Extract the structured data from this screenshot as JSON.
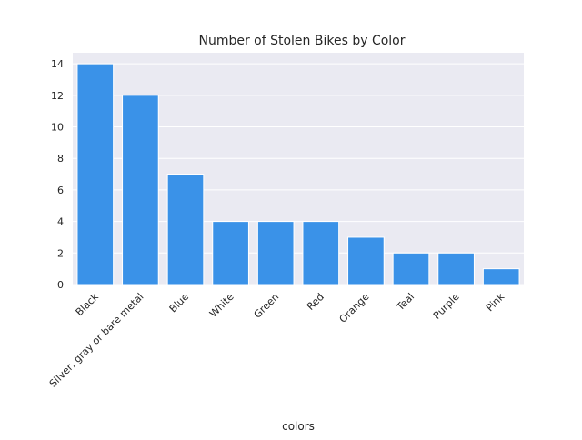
{
  "chart_data": {
    "type": "bar",
    "title": "Number of Stolen Bikes by Color",
    "xlabel": "colors",
    "ylabel": "",
    "categories": [
      "Black",
      "Silver, gray or bare metal",
      "Blue",
      "White",
      "Green",
      "Red",
      "Orange",
      "Teal",
      "Purple",
      "Pink"
    ],
    "values": [
      14,
      12,
      7,
      4,
      4,
      4,
      3,
      2,
      2,
      1
    ],
    "ylim": [
      0,
      14.7
    ],
    "yticks": [
      0,
      2,
      4,
      6,
      8,
      10,
      12,
      14
    ],
    "grid": true,
    "colors": {
      "bar": "#3a92e8",
      "plot_background": "#eaeaf2",
      "grid": "#ffffff"
    }
  }
}
